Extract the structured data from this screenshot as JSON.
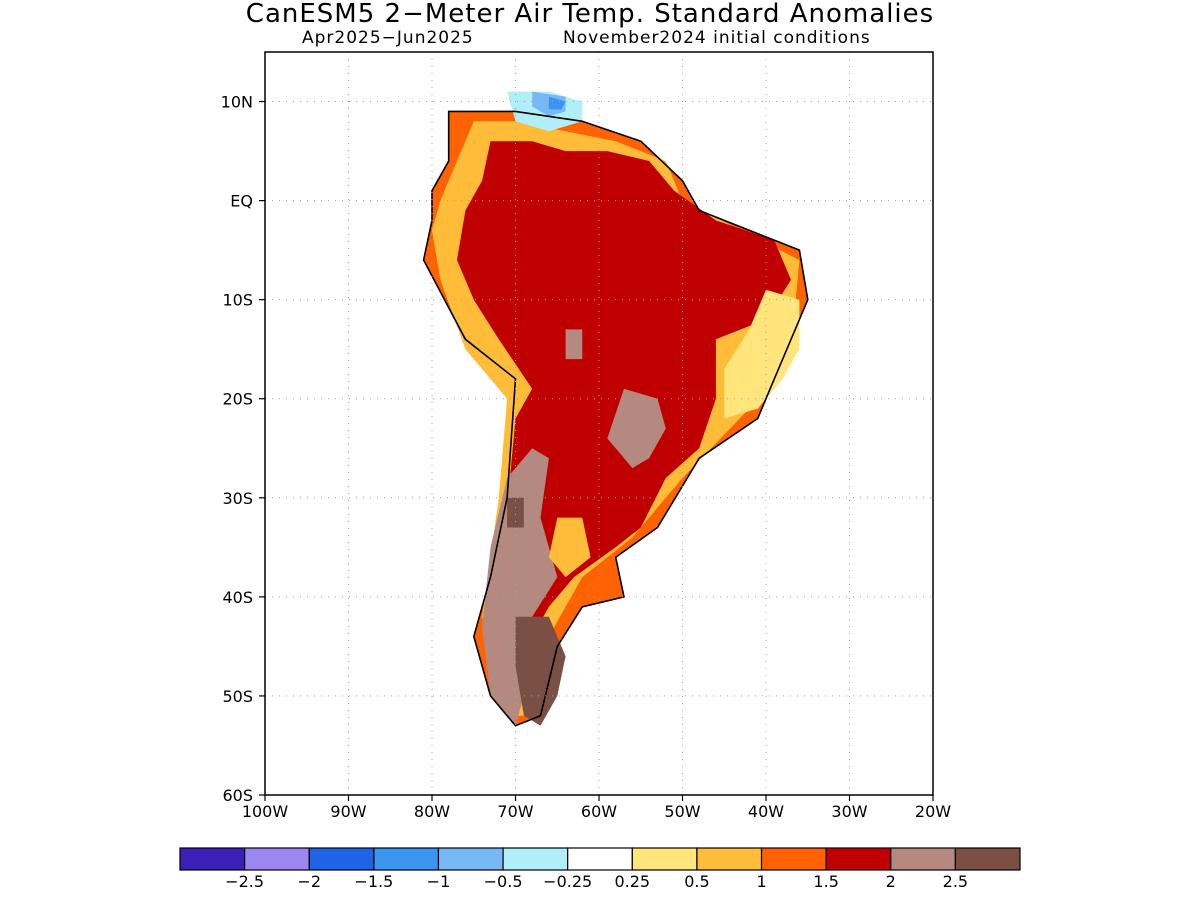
{
  "title": "CanESM5 2−Meter Air Temp. Standard Anomalies",
  "subtitle_period": "Apr2025−Jun2025",
  "subtitle_init": "November2024 initial conditions",
  "chart_data": {
    "type": "heatmap",
    "projection": "lat-lon",
    "xlim": [
      -100,
      -20
    ],
    "ylim": [
      -60,
      15
    ],
    "lon_ticks": [
      {
        "value": -100,
        "label": "100W"
      },
      {
        "value": -90,
        "label": "90W"
      },
      {
        "value": -80,
        "label": "80W"
      },
      {
        "value": -70,
        "label": "70W"
      },
      {
        "value": -60,
        "label": "60W"
      },
      {
        "value": -50,
        "label": "50W"
      },
      {
        "value": -40,
        "label": "40W"
      },
      {
        "value": -30,
        "label": "30W"
      },
      {
        "value": -20,
        "label": "20W"
      }
    ],
    "lat_ticks": [
      {
        "value": 10,
        "label": "10N"
      },
      {
        "value": 0,
        "label": "EQ"
      },
      {
        "value": -10,
        "label": "10S"
      },
      {
        "value": -20,
        "label": "20S"
      },
      {
        "value": -30,
        "label": "30S"
      },
      {
        "value": -40,
        "label": "40S"
      },
      {
        "value": -50,
        "label": "50S"
      },
      {
        "value": -60,
        "label": "60S"
      }
    ],
    "grid": true,
    "legend": {
      "placement": "bottom",
      "colors": [
        "#3b20b8",
        "#9c86f2",
        "#1f63e6",
        "#3b94f0",
        "#78b8f6",
        "#b1eff8",
        "#ffffff",
        "#ffe57c",
        "#ffbc38",
        "#ff6202",
        "#c00000",
        "#b48a80",
        "#7a5045"
      ],
      "labels": [
        "−2.5",
        "−2",
        "−1.5",
        "−1",
        "−0.5",
        "−0.25",
        "0.25",
        "0.5",
        "1",
        "1.5",
        "2",
        "2.5"
      ]
    },
    "regions": [
      {
        "level": 1.0,
        "polygon": [
          [
            -78,
            9
          ],
          [
            -70,
            9
          ],
          [
            -62,
            8
          ],
          [
            -55,
            6
          ],
          [
            -50,
            2
          ],
          [
            -48,
            -1
          ],
          [
            -36,
            -5
          ],
          [
            -35,
            -10
          ],
          [
            -39,
            -18
          ],
          [
            -41,
            -22
          ],
          [
            -48,
            -26
          ],
          [
            -53,
            -33
          ],
          [
            -58,
            -36
          ],
          [
            -57,
            -40
          ],
          [
            -62,
            -41
          ],
          [
            -65,
            -45
          ],
          [
            -67,
            -52
          ],
          [
            -70,
            -53
          ],
          [
            -73,
            -50
          ],
          [
            -75,
            -44
          ],
          [
            -73,
            -38
          ],
          [
            -71,
            -30
          ],
          [
            -70,
            -18
          ],
          [
            -76,
            -14
          ],
          [
            -81,
            -6
          ],
          [
            -80,
            -2
          ],
          [
            -80,
            1
          ],
          [
            -78,
            4
          ]
        ]
      },
      {
        "level": 0.5,
        "polygon": [
          [
            -75,
            8
          ],
          [
            -70,
            8
          ],
          [
            -64,
            7
          ],
          [
            -58,
            6
          ],
          [
            -52,
            4
          ],
          [
            -50,
            0
          ],
          [
            -36,
            -6
          ],
          [
            -37,
            -15
          ],
          [
            -42,
            -21
          ],
          [
            -50,
            -28
          ],
          [
            -56,
            -34
          ],
          [
            -62,
            -38
          ],
          [
            -66,
            -44
          ],
          [
            -68,
            -52
          ],
          [
            -71,
            -52
          ],
          [
            -74,
            -42
          ],
          [
            -72,
            -30
          ],
          [
            -71,
            -20
          ],
          [
            -76,
            -15
          ],
          [
            -79,
            -8
          ],
          [
            -80,
            -3
          ],
          [
            -79,
            0
          ],
          [
            -77,
            4
          ]
        ]
      },
      {
        "level": 1.5,
        "polygon": [
          [
            -73,
            6
          ],
          [
            -68,
            6
          ],
          [
            -64,
            5
          ],
          [
            -59,
            5
          ],
          [
            -54,
            4
          ],
          [
            -51,
            1
          ],
          [
            -46,
            -2
          ],
          [
            -39,
            -4
          ],
          [
            -37,
            -8
          ],
          [
            -40,
            -12
          ],
          [
            -46,
            -14
          ],
          [
            -46,
            -20
          ],
          [
            -48,
            -25
          ],
          [
            -52,
            -28
          ],
          [
            -55,
            -33
          ],
          [
            -58,
            -35
          ],
          [
            -63,
            -38
          ],
          [
            -66,
            -41
          ],
          [
            -68,
            -44
          ],
          [
            -70,
            -46
          ],
          [
            -72,
            -41
          ],
          [
            -71,
            -31
          ],
          [
            -70,
            -22
          ],
          [
            -68,
            -19
          ],
          [
            -72,
            -14
          ],
          [
            -75,
            -10
          ],
          [
            -77,
            -6
          ],
          [
            -76,
            -1
          ],
          [
            -74,
            2
          ]
        ]
      },
      {
        "level": 2.0,
        "polygon": [
          [
            -71,
            -28
          ],
          [
            -68,
            -25
          ],
          [
            -66,
            -26
          ],
          [
            -67,
            -32
          ],
          [
            -65,
            -38
          ],
          [
            -68,
            -42
          ],
          [
            -69,
            -50
          ],
          [
            -70,
            -53
          ],
          [
            -73,
            -50
          ],
          [
            -74,
            -43
          ],
          [
            -73,
            -35
          ]
        ]
      },
      {
        "level": 2.0,
        "polygon": [
          [
            -57,
            -19
          ],
          [
            -53,
            -20
          ],
          [
            -52,
            -23
          ],
          [
            -54,
            -26
          ],
          [
            -56,
            -27
          ],
          [
            -59,
            -24
          ]
        ]
      },
      {
        "level": 2.0,
        "polygon": [
          [
            -64,
            -13
          ],
          [
            -62,
            -13
          ],
          [
            -62,
            -16
          ],
          [
            -64,
            -16
          ]
        ]
      },
      {
        "level": 2.5,
        "polygon": [
          [
            -70,
            -42
          ],
          [
            -66,
            -42
          ],
          [
            -64,
            -46
          ],
          [
            -65,
            -50
          ],
          [
            -67,
            -53
          ],
          [
            -69,
            -52
          ],
          [
            -70,
            -47
          ]
        ]
      },
      {
        "level": 2.5,
        "polygon": [
          [
            -71,
            -30
          ],
          [
            -69,
            -30
          ],
          [
            -69,
            -33
          ],
          [
            -71,
            -33
          ]
        ]
      },
      {
        "level": 0.5,
        "polygon": [
          [
            -65,
            -32
          ],
          [
            -62,
            -32
          ],
          [
            -61,
            -36
          ],
          [
            -64,
            -38
          ],
          [
            -66,
            -36
          ]
        ]
      },
      {
        "level": 0.25,
        "polygon": [
          [
            -40,
            -9
          ],
          [
            -36,
            -10
          ],
          [
            -36,
            -15
          ],
          [
            -38,
            -18
          ],
          [
            -41,
            -21
          ],
          [
            -45,
            -22
          ],
          [
            -45,
            -17
          ],
          [
            -42,
            -13
          ]
        ]
      },
      {
        "level": -0.25,
        "polygon": [
          [
            -71,
            11
          ],
          [
            -66,
            11
          ],
          [
            -62,
            10
          ],
          [
            -62,
            8
          ],
          [
            -66,
            7
          ],
          [
            -70,
            8
          ]
        ]
      },
      {
        "level": -0.5,
        "polygon": [
          [
            -68,
            11
          ],
          [
            -64,
            10.5
          ],
          [
            -64,
            9
          ],
          [
            -66,
            8.5
          ],
          [
            -68,
            9.5
          ]
        ]
      },
      {
        "level": -1.0,
        "polygon": [
          [
            -66,
            10.5
          ],
          [
            -64,
            10
          ],
          [
            -64.5,
            9.2
          ],
          [
            -66,
            9.2
          ]
        ]
      }
    ]
  }
}
